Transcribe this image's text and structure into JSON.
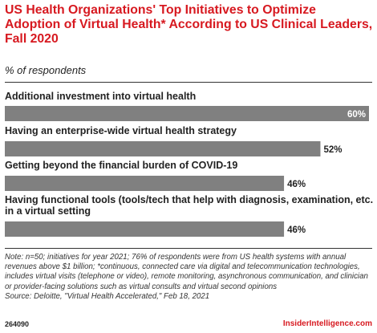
{
  "chart_data": {
    "type": "bar",
    "orientation": "horizontal",
    "title": "US Health Organizations' Top Initiatives to Optimize Adoption of Virtual Health* According to US Clinical Leaders, Fall 2020",
    "subtitle": "% of respondents",
    "categories": [
      "Additional investment into virtual health",
      "Having an enterprise-wide virtual health strategy",
      "Getting beyond the financial burden of COVID-19",
      "Having functional tools (tools/tech that help with diagnosis, examination, etc. in a virtual setting"
    ],
    "values": [
      60,
      52,
      46,
      46
    ],
    "value_labels": [
      "60%",
      "52%",
      "46%",
      "46%"
    ],
    "xlim": [
      0,
      60
    ],
    "grid": false,
    "legend": "none"
  },
  "colors": {
    "title": "#d71920",
    "bar": "#808080",
    "first_bar_label": "#ffffff",
    "label": "#222222",
    "brand": "#d71920"
  },
  "note": "Note: n=50; initiatives for year 2021; 76% of respondents were from US health systems with annual revenues above $1 billion; *continuous, connected care via digital and telecommunication technologies, includes virtual visits (telephone or video), remote monitoring, asynchronous communication, and clinician or provider-facing solutions such as virtual consults and virtual second opinions",
  "source": "Source: Deloitte, \"Virtual Health Accelerated,\" Feb 18, 2021",
  "footer": {
    "chart_id": "264090",
    "brand": "InsiderIntelligence.com"
  }
}
